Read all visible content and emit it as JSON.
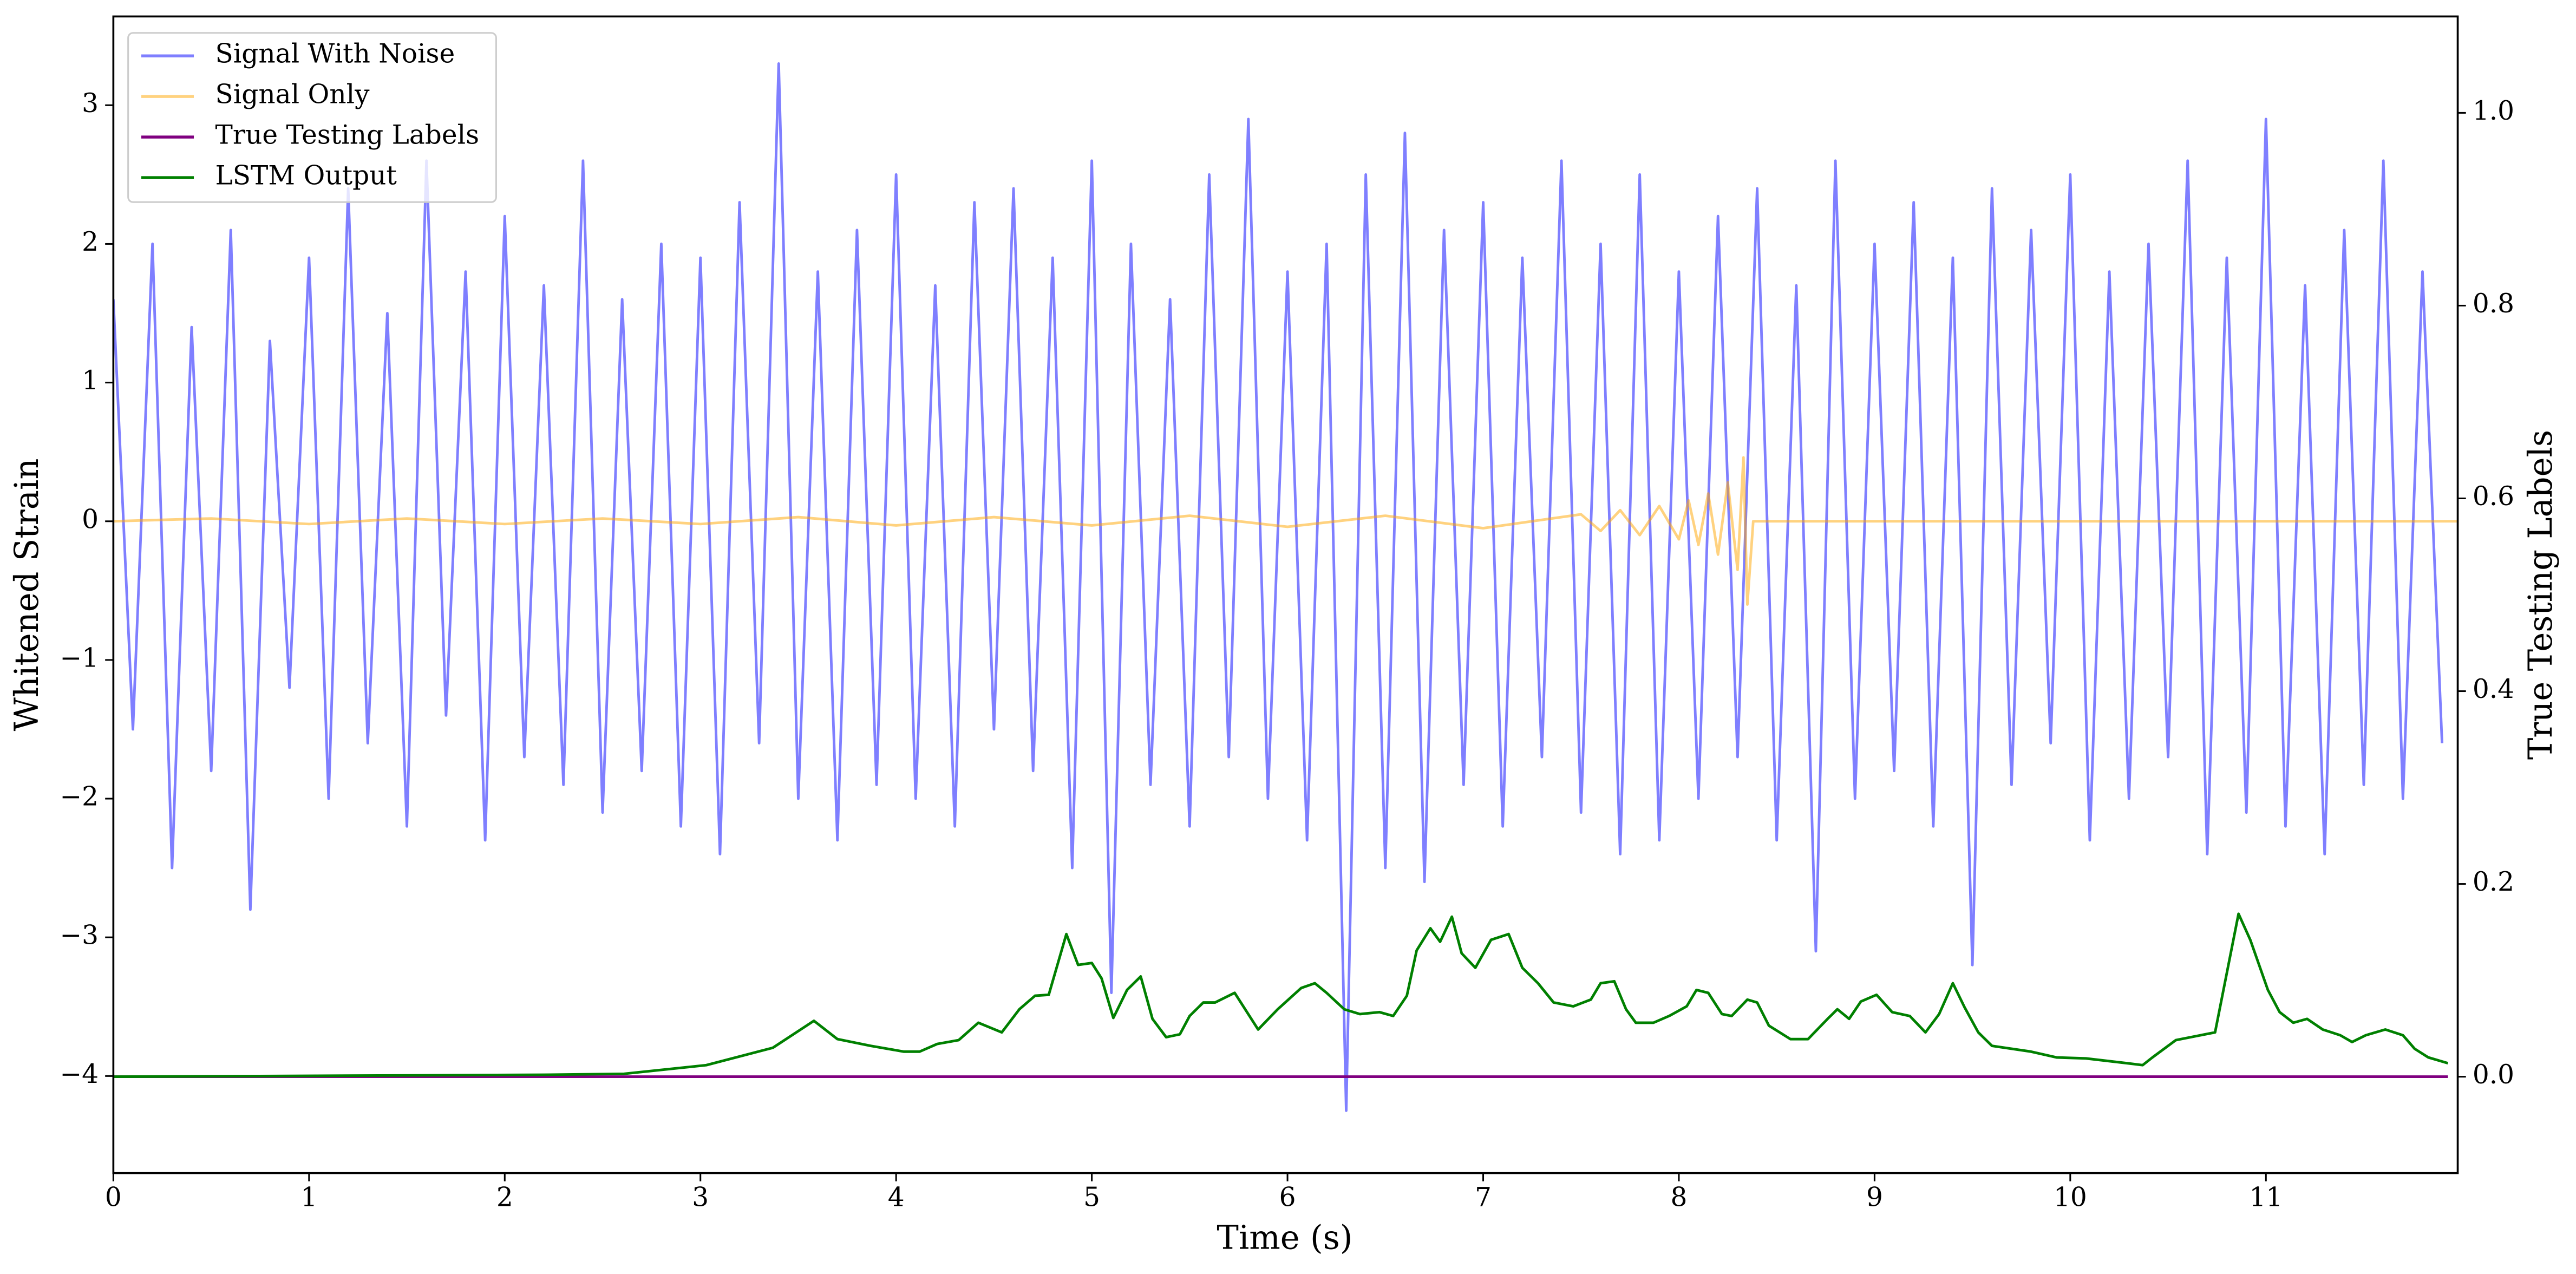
{
  "chart_data": {
    "type": "line",
    "xlabel": "Time (s)",
    "ylabel": "Whitened Strain",
    "y2label": "True Testing Labels",
    "xlim": [
      0,
      11.98
    ],
    "ylim": [
      -4.7,
      3.64
    ],
    "y2lim": [
      -0.1,
      1.1
    ],
    "xticks": [
      0,
      1,
      2,
      3,
      4,
      5,
      6,
      7,
      8,
      9,
      10,
      11
    ],
    "yticks": [
      {
        "value": -4,
        "label": "−4"
      },
      {
        "value": -3,
        "label": "−3"
      },
      {
        "value": -2,
        "label": "−2"
      },
      {
        "value": -1,
        "label": "−1"
      },
      0,
      1,
      2,
      3
    ],
    "y2ticks": [
      {
        "value": 0,
        "label": "0.0"
      },
      {
        "value": 0.2,
        "label": "0.2"
      },
      {
        "value": 0.4,
        "label": "0.4"
      },
      {
        "value": 0.6,
        "label": "0.6"
      },
      {
        "value": 0.8,
        "label": "0.8"
      },
      {
        "value": 1.0,
        "label": "1.0"
      }
    ],
    "legend": "upper left",
    "series": [
      {
        "name": "Signal With Noise",
        "color": "#0000ff",
        "alpha": 0.5,
        "axis": "y",
        "x": [
          0,
          0.1,
          0.2,
          0.3,
          0.4,
          0.5,
          0.6,
          0.7,
          0.8,
          0.9,
          1,
          1.1,
          1.2,
          1.3,
          1.4,
          1.5,
          1.6,
          1.7,
          1.8,
          1.9,
          2,
          2.1,
          2.2,
          2.3,
          2.4,
          2.5,
          2.6,
          2.7,
          2.8,
          2.9,
          3,
          3.1,
          3.2,
          3.3,
          3.4,
          3.5,
          3.6,
          3.7,
          3.8,
          3.9,
          4,
          4.1,
          4.2,
          4.3,
          4.4,
          4.5,
          4.6,
          4.7,
          4.8,
          4.9,
          5,
          5.1,
          5.2,
          5.3,
          5.4,
          5.5,
          5.6,
          5.7,
          5.8,
          5.9,
          6,
          6.1,
          6.2,
          6.3,
          6.4,
          6.5,
          6.6,
          6.7,
          6.8,
          6.9,
          7,
          7.1,
          7.2,
          7.3,
          7.4,
          7.5,
          7.6,
          7.7,
          7.8,
          7.9,
          8,
          8.1,
          8.2,
          8.3,
          8.4,
          8.5,
          8.6,
          8.7,
          8.8,
          8.9,
          9,
          9.1,
          9.2,
          9.3,
          9.4,
          9.5,
          9.6,
          9.7,
          9.8,
          9.9,
          10,
          10.1,
          10.2,
          10.3,
          10.4,
          10.5,
          10.6,
          10.7,
          10.8,
          10.9,
          11,
          11.1,
          11.2,
          11.3,
          11.4,
          11.5,
          11.6,
          11.7,
          11.8,
          11.9
        ],
        "values": [
          1.6,
          -1.5,
          2.0,
          -2.5,
          1.4,
          -1.8,
          2.1,
          -2.8,
          1.3,
          -1.2,
          1.9,
          -2.0,
          2.4,
          -1.6,
          1.5,
          -2.2,
          2.6,
          -1.4,
          1.8,
          -2.3,
          2.2,
          -1.7,
          1.7,
          -1.9,
          2.6,
          -2.1,
          1.6,
          -1.8,
          2.0,
          -2.2,
          1.9,
          -2.4,
          2.3,
          -1.6,
          3.3,
          -2.0,
          1.8,
          -2.3,
          2.1,
          -1.9,
          2.5,
          -2.0,
          1.7,
          -2.2,
          2.3,
          -1.5,
          2.4,
          -1.8,
          1.9,
          -2.5,
          2.6,
          -3.4,
          2.0,
          -1.9,
          1.6,
          -2.2,
          2.5,
          -1.7,
          2.9,
          -2.0,
          1.8,
          -2.3,
          2.0,
          -4.25,
          2.5,
          -2.5,
          2.8,
          -2.6,
          2.1,
          -1.9,
          2.3,
          -2.2,
          1.9,
          -1.7,
          2.6,
          -2.1,
          2.0,
          -2.4,
          2.5,
          -2.3,
          1.8,
          -2.0,
          2.2,
          -1.7,
          2.4,
          -2.3,
          1.7,
          -3.1,
          2.6,
          -2.0,
          2.0,
          -1.8,
          2.3,
          -2.2,
          1.9,
          -3.2,
          2.4,
          -1.9,
          2.1,
          -1.6,
          2.5,
          -2.3,
          1.8,
          -2.0,
          2.0,
          -1.7,
          2.6,
          -2.4,
          1.9,
          -2.1,
          2.9,
          -2.2,
          1.7,
          -2.4,
          2.1,
          -1.9,
          2.6,
          -2.0,
          1.8,
          -1.6
        ]
      },
      {
        "name": "Signal Only",
        "color": "#ffa500",
        "alpha": 0.5,
        "axis": "y",
        "x": [
          0,
          0.5,
          1,
          1.5,
          2,
          2.5,
          3,
          3.5,
          4,
          4.5,
          5,
          5.5,
          6,
          6.5,
          7,
          7.5,
          7.6,
          7.7,
          7.8,
          7.9,
          8.0,
          8.05,
          8.1,
          8.15,
          8.2,
          8.25,
          8.3,
          8.33,
          8.35,
          8.38,
          11.98
        ],
        "values": [
          0,
          0.02,
          -0.02,
          0.02,
          -0.02,
          0.02,
          -0.02,
          0.03,
          -0.03,
          0.03,
          -0.03,
          0.04,
          -0.04,
          0.04,
          -0.05,
          0.05,
          -0.07,
          0.08,
          -0.1,
          0.11,
          -0.13,
          0.15,
          -0.17,
          0.2,
          -0.24,
          0.28,
          -0.35,
          0.46,
          -0.6,
          0,
          0
        ]
      },
      {
        "name": "True Testing Labels",
        "color": "#800080",
        "alpha": 1,
        "axis": "y2",
        "x": [
          0,
          11.93
        ],
        "values": [
          0,
          0
        ]
      },
      {
        "name": "LSTM Output",
        "color": "#008000",
        "alpha": 1,
        "axis": "y2",
        "x": [
          0,
          2.19,
          2.61,
          3.03,
          3.37,
          3.58,
          3.7,
          3.87,
          4.04,
          4.12,
          4.21,
          4.32,
          4.42,
          4.54,
          4.63,
          4.71,
          4.78,
          4.87,
          4.93,
          5.0,
          5.05,
          5.11,
          5.18,
          5.25,
          5.31,
          5.38,
          5.45,
          5.5,
          5.57,
          5.63,
          5.73,
          5.85,
          5.95,
          6.07,
          6.14,
          6.2,
          6.29,
          6.37,
          6.47,
          6.54,
          6.61,
          6.66,
          6.73,
          6.78,
          6.84,
          6.89,
          6.96,
          7.04,
          7.13,
          7.2,
          7.28,
          7.36,
          7.46,
          7.55,
          7.6,
          7.67,
          7.73,
          7.78,
          7.87,
          7.95,
          8.04,
          8.09,
          8.15,
          8.22,
          8.27,
          8.35,
          8.4,
          8.46,
          8.57,
          8.66,
          8.76,
          8.81,
          8.87,
          8.93,
          9.01,
          9.09,
          9.18,
          9.26,
          9.33,
          9.4,
          9.46,
          9.53,
          9.6,
          9.8,
          9.93,
          10.08,
          10.29,
          10.37,
          10.42,
          10.54,
          10.74,
          10.86,
          10.92,
          11.01,
          11.07,
          11.14,
          11.21,
          11.29,
          11.38,
          11.44,
          11.51,
          11.61,
          11.7,
          11.76,
          11.83,
          11.93
        ],
        "values": [
          0,
          0.002,
          0.003,
          0.012,
          0.03,
          0.058,
          0.039,
          0.032,
          0.026,
          0.026,
          0.034,
          0.038,
          0.056,
          0.046,
          0.07,
          0.084,
          0.085,
          0.148,
          0.116,
          0.118,
          0.102,
          0.061,
          0.09,
          0.104,
          0.06,
          0.041,
          0.044,
          0.063,
          0.077,
          0.077,
          0.087,
          0.049,
          0.07,
          0.092,
          0.097,
          0.087,
          0.07,
          0.065,
          0.067,
          0.063,
          0.084,
          0.131,
          0.154,
          0.14,
          0.166,
          0.128,
          0.113,
          0.142,
          0.148,
          0.113,
          0.097,
          0.077,
          0.073,
          0.08,
          0.097,
          0.099,
          0.07,
          0.056,
          0.056,
          0.063,
          0.073,
          0.09,
          0.087,
          0.065,
          0.063,
          0.08,
          0.077,
          0.053,
          0.039,
          0.039,
          0.06,
          0.07,
          0.06,
          0.078,
          0.085,
          0.067,
          0.063,
          0.046,
          0.065,
          0.097,
          0.072,
          0.046,
          0.032,
          0.026,
          0.02,
          0.019,
          0.014,
          0.012,
          0.02,
          0.038,
          0.046,
          0.169,
          0.142,
          0.09,
          0.067,
          0.056,
          0.06,
          0.049,
          0.043,
          0.036,
          0.043,
          0.049,
          0.043,
          0.029,
          0.02,
          0.014
        ]
      }
    ]
  }
}
